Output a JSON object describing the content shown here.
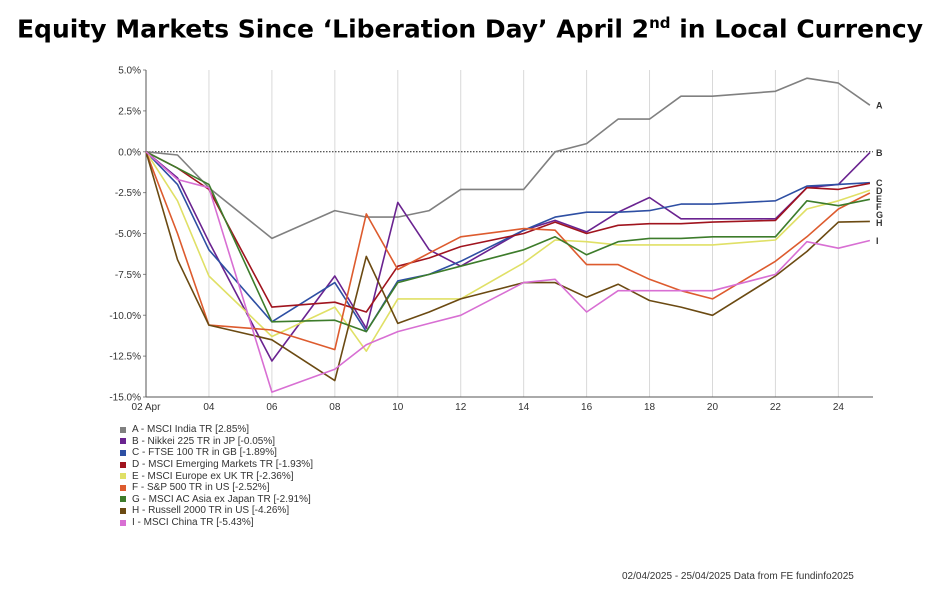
{
  "title": {
    "main": "Equity Markets Since ‘Liberation Day’ April 2",
    "sup": "nd",
    "suffix": " in Local Currency"
  },
  "footer": "02/04/2025 - 25/04/2025 Data from FE fundinfo2025",
  "chart_data": {
    "type": "line",
    "title": "Equity Markets Since ‘Liberation Day’ April 2nd in Local Currency",
    "x_ticks": [
      {
        "label": "02 Apr",
        "day": 2
      },
      {
        "label": "04",
        "day": 4
      },
      {
        "label": "06",
        "day": 6
      },
      {
        "label": "08",
        "day": 8
      },
      {
        "label": "10",
        "day": 10
      },
      {
        "label": "12",
        "day": 12
      },
      {
        "label": "14",
        "day": 14
      },
      {
        "label": "16",
        "day": 16
      },
      {
        "label": "18",
        "day": 18
      },
      {
        "label": "20",
        "day": 20
      },
      {
        "label": "22",
        "day": 22
      },
      {
        "label": "24",
        "day": 24
      }
    ],
    "xlim": [
      2,
      25.1
    ],
    "y_ticks": [
      "5.0%",
      "2.5%",
      "0.0%",
      "-2.5%",
      "-5.0%",
      "-7.5%",
      "-10.0%",
      "-12.5%",
      "-15.0%"
    ],
    "ylim": [
      -15,
      5
    ],
    "grid": true,
    "zero_line": "dotted",
    "legend_position": "bottom-left",
    "series": [
      {
        "letter": "A",
        "name": "A - MSCI India TR [2.85%]",
        "color": "#808080",
        "points": [
          [
            2,
            0
          ],
          [
            3,
            -0.2
          ],
          [
            4,
            -2.2
          ],
          [
            6,
            -5.3
          ],
          [
            8,
            -3.6
          ],
          [
            9,
            -4
          ],
          [
            10,
            -4
          ],
          [
            11,
            -3.6
          ],
          [
            12,
            -2.3
          ],
          [
            14,
            -2.3
          ],
          [
            15,
            0
          ],
          [
            16,
            0.5
          ],
          [
            17,
            2
          ],
          [
            18,
            2
          ],
          [
            19,
            3.4
          ],
          [
            20,
            3.4
          ],
          [
            22,
            3.7
          ],
          [
            23,
            4.5
          ],
          [
            24,
            4.2
          ],
          [
            25,
            2.85
          ]
        ]
      },
      {
        "letter": "B",
        "name": "B - Nikkei 225 TR in JP [-0.05%]",
        "color": "#6a2390",
        "points": [
          [
            2,
            0
          ],
          [
            3,
            -1.6
          ],
          [
            4,
            -5.5
          ],
          [
            6,
            -12.8
          ],
          [
            8,
            -7.6
          ],
          [
            9,
            -10.8
          ],
          [
            10,
            -3.1
          ],
          [
            11,
            -6
          ],
          [
            12,
            -7
          ],
          [
            14,
            -4.8
          ],
          [
            15,
            -4.2
          ],
          [
            16,
            -4.9
          ],
          [
            17,
            -3.7
          ],
          [
            18,
            -2.8
          ],
          [
            19,
            -4.1
          ],
          [
            20,
            -4.1
          ],
          [
            22,
            -4.1
          ],
          [
            23,
            -2.2
          ],
          [
            24,
            -2
          ],
          [
            25,
            -0.05
          ]
        ]
      },
      {
        "letter": "C",
        "name": "C - FTSE 100 TR in GB [-1.89%]",
        "color": "#2e4fa3",
        "points": [
          [
            2,
            0
          ],
          [
            3,
            -2
          ],
          [
            4,
            -6
          ],
          [
            6,
            -10.4
          ],
          [
            8,
            -8
          ],
          [
            9,
            -11
          ],
          [
            10,
            -7.9
          ],
          [
            11,
            -7.5
          ],
          [
            12,
            -6.7
          ],
          [
            14,
            -4.8
          ],
          [
            15,
            -4
          ],
          [
            16,
            -3.7
          ],
          [
            17,
            -3.7
          ],
          [
            18,
            -3.6
          ],
          [
            19,
            -3.2
          ],
          [
            20,
            -3.2
          ],
          [
            22,
            -3
          ],
          [
            23,
            -2.1
          ],
          [
            24,
            -2
          ],
          [
            25,
            -1.89
          ]
        ]
      },
      {
        "letter": "D",
        "name": "D - MSCI Emerging Markets TR [-1.93%]",
        "color": "#a0141e",
        "points": [
          [
            2,
            0
          ],
          [
            3,
            -1
          ],
          [
            4,
            -2.3
          ],
          [
            6,
            -9.5
          ],
          [
            8,
            -9.2
          ],
          [
            9,
            -9.8
          ],
          [
            10,
            -7
          ],
          [
            11,
            -6.5
          ],
          [
            12,
            -5.8
          ],
          [
            14,
            -5
          ],
          [
            15,
            -4.3
          ],
          [
            16,
            -5
          ],
          [
            17,
            -4.5
          ],
          [
            18,
            -4.4
          ],
          [
            19,
            -4.4
          ],
          [
            20,
            -4.3
          ],
          [
            22,
            -4.2
          ],
          [
            23,
            -2.2
          ],
          [
            24,
            -2.3
          ],
          [
            25,
            -1.93
          ]
        ]
      },
      {
        "letter": "E",
        "name": "E - MSCI Europe ex UK TR [-2.36%]",
        "color": "#e0e066",
        "points": [
          [
            2,
            0
          ],
          [
            3,
            -3
          ],
          [
            4,
            -7.6
          ],
          [
            6,
            -11.3
          ],
          [
            8,
            -9.5
          ],
          [
            9,
            -12.2
          ],
          [
            10,
            -9
          ],
          [
            11,
            -9
          ],
          [
            12,
            -9
          ],
          [
            14,
            -6.8
          ],
          [
            15,
            -5.4
          ],
          [
            16,
            -5.5
          ],
          [
            17,
            -5.7
          ],
          [
            18,
            -5.7
          ],
          [
            19,
            -5.7
          ],
          [
            20,
            -5.7
          ],
          [
            22,
            -5.4
          ],
          [
            23,
            -3.5
          ],
          [
            24,
            -3
          ],
          [
            25,
            -2.36
          ]
        ]
      },
      {
        "letter": "F",
        "name": "F - S&P 500 TR in US [-2.52%]",
        "color": "#dd5b2e",
        "points": [
          [
            2,
            0
          ],
          [
            3,
            -5
          ],
          [
            4,
            -10.6
          ],
          [
            6,
            -10.9
          ],
          [
            8,
            -12.1
          ],
          [
            9,
            -3.8
          ],
          [
            10,
            -7.2
          ],
          [
            11,
            -6.2
          ],
          [
            12,
            -5.2
          ],
          [
            14,
            -4.7
          ],
          [
            15,
            -4.8
          ],
          [
            16,
            -6.9
          ],
          [
            17,
            -6.9
          ],
          [
            18,
            -7.8
          ],
          [
            19,
            -8.5
          ],
          [
            20,
            -9
          ],
          [
            22,
            -6.7
          ],
          [
            23,
            -5.2
          ],
          [
            24,
            -3.5
          ],
          [
            25,
            -2.52
          ]
        ]
      },
      {
        "letter": "G",
        "name": "G - MSCI AC Asia ex Japan TR [-2.91%]",
        "color": "#3d7c2b",
        "points": [
          [
            2,
            0
          ],
          [
            3,
            -1
          ],
          [
            4,
            -2
          ],
          [
            6,
            -10.4
          ],
          [
            8,
            -10.3
          ],
          [
            9,
            -11
          ],
          [
            10,
            -8
          ],
          [
            11,
            -7.5
          ],
          [
            12,
            -7
          ],
          [
            14,
            -6
          ],
          [
            15,
            -5.2
          ],
          [
            16,
            -6.3
          ],
          [
            17,
            -5.5
          ],
          [
            18,
            -5.3
          ],
          [
            19,
            -5.3
          ],
          [
            20,
            -5.2
          ],
          [
            22,
            -5.2
          ],
          [
            23,
            -3
          ],
          [
            24,
            -3.3
          ],
          [
            25,
            -2.91
          ]
        ]
      },
      {
        "letter": "H",
        "name": "H - Russell 2000 TR in US [-4.26%]",
        "color": "#6b4a12",
        "points": [
          [
            2,
            0
          ],
          [
            3,
            -6.6
          ],
          [
            4,
            -10.6
          ],
          [
            6,
            -11.5
          ],
          [
            8,
            -14
          ],
          [
            9,
            -6.4
          ],
          [
            10,
            -10.5
          ],
          [
            11,
            -9.8
          ],
          [
            12,
            -9
          ],
          [
            14,
            -8
          ],
          [
            15,
            -8
          ],
          [
            16,
            -8.9
          ],
          [
            17,
            -8.1
          ],
          [
            18,
            -9.1
          ],
          [
            19,
            -9.5
          ],
          [
            20,
            -10
          ],
          [
            22,
            -7.6
          ],
          [
            23,
            -6.1
          ],
          [
            24,
            -4.3
          ],
          [
            25,
            -4.26
          ]
        ]
      },
      {
        "letter": "I",
        "name": "I - MSCI China TR [-5.43%]",
        "color": "#d86fd3",
        "points": [
          [
            2,
            0
          ],
          [
            3,
            -1.7
          ],
          [
            4,
            -2.2
          ],
          [
            6,
            -14.7
          ],
          [
            8,
            -13.3
          ],
          [
            9,
            -11.8
          ],
          [
            10,
            -11
          ],
          [
            11,
            -10.5
          ],
          [
            12,
            -10
          ],
          [
            14,
            -8
          ],
          [
            15,
            -7.8
          ],
          [
            16,
            -9.8
          ],
          [
            17,
            -8.5
          ],
          [
            18,
            -8.5
          ],
          [
            19,
            -8.5
          ],
          [
            20,
            -8.5
          ],
          [
            22,
            -7.5
          ],
          [
            23,
            -5.5
          ],
          [
            24,
            -5.9
          ],
          [
            25,
            -5.43
          ]
        ]
      }
    ]
  }
}
